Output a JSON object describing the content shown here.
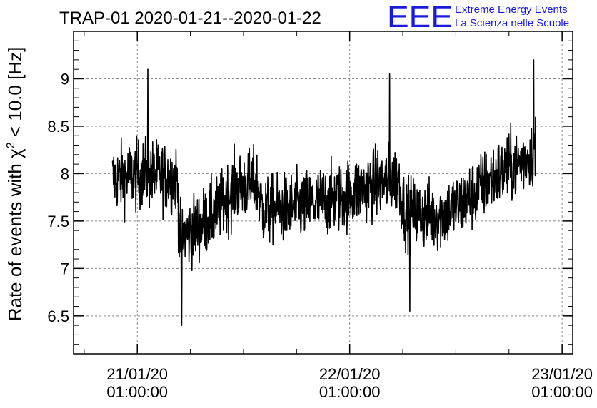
{
  "logo": {
    "letters": "EEE",
    "line1": "Extreme Energy Events",
    "line2": "La Scienza nelle Scuole",
    "color": "#1a1adc"
  },
  "chart_data": {
    "type": "line",
    "title": "TRAP-01 2020-01-21--2020-01-22",
    "ylabel_prefix": "Rate of events with χ",
    "ylabel_sup": "2",
    "ylabel_suffix": " < 10.0 [Hz]",
    "xlabel": "",
    "x_ticks": [
      {
        "x": 0.0,
        "date": "21/01/20",
        "time": "01:00:00"
      },
      {
        "x": 24.0,
        "date": "22/01/20",
        "time": "01:00:00"
      },
      {
        "x": 48.0,
        "date": "23/01/20",
        "time": "01:00:00"
      }
    ],
    "x_unit": "hours since 21/01/20 01:00:00",
    "xlim": [
      -7.2,
      49.2
    ],
    "ylim": [
      6.1,
      9.5
    ],
    "y_ticks": [
      6.5,
      7,
      7.5,
      8,
      8.5,
      9
    ],
    "y_tick_labels": [
      "6.5",
      "7",
      "7.5",
      "8",
      "8.5",
      "9"
    ],
    "grid": true,
    "line_color": "#000000",
    "mean_profile": [
      {
        "x": -2.8,
        "y": 7.95
      },
      {
        "x": 1.0,
        "y": 8.0
      },
      {
        "x": 4.5,
        "y": 7.95
      },
      {
        "x": 4.8,
        "y": 7.3
      },
      {
        "x": 7.0,
        "y": 7.45
      },
      {
        "x": 9.0,
        "y": 7.6
      },
      {
        "x": 11.0,
        "y": 7.85
      },
      {
        "x": 13.5,
        "y": 7.9
      },
      {
        "x": 14.2,
        "y": 7.6
      },
      {
        "x": 18.0,
        "y": 7.65
      },
      {
        "x": 23.0,
        "y": 7.75
      },
      {
        "x": 27.0,
        "y": 7.9
      },
      {
        "x": 29.5,
        "y": 7.95
      },
      {
        "x": 30.2,
        "y": 7.6
      },
      {
        "x": 34.0,
        "y": 7.55
      },
      {
        "x": 37.0,
        "y": 7.7
      },
      {
        "x": 40.0,
        "y": 7.95
      },
      {
        "x": 43.0,
        "y": 8.1
      },
      {
        "x": 45.0,
        "y": 8.25
      }
    ],
    "peaks": [
      {
        "x": 1.2,
        "y": 9.1
      },
      {
        "x": 28.5,
        "y": 9.05
      },
      {
        "x": 44.8,
        "y": 9.2
      },
      {
        "x": 5.0,
        "y": 6.4
      },
      {
        "x": 30.8,
        "y": 6.55
      }
    ]
  }
}
